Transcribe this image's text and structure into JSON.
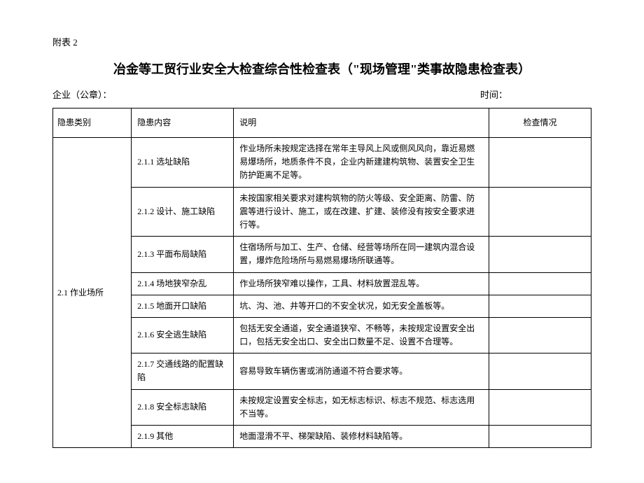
{
  "appendix_label": "附表 2",
  "title": "冶金等工贸行业安全大检查综合性检查表（\"现场管理\"类事故隐患检查表）",
  "meta": {
    "company_label": "企业（公章）：",
    "time_label": "时间："
  },
  "table": {
    "headers": {
      "category": "隐患类别",
      "content": "隐患内容",
      "desc": "说明",
      "status": "检查情况"
    },
    "category": "2.1 作业场所",
    "rows": [
      {
        "content": "2.1.1 选址缺陷",
        "desc": "作业场所未按规定选择在常年主导风上风或侧风风向，靠近易燃易爆场所，地质条件不良，企业内新建建构筑物、装置安全卫生防护距离不足等。",
        "status": ""
      },
      {
        "content": "2.1.2 设计、施工缺陷",
        "desc": "未按国家相关要求对建构筑物的防火等级、安全距离、防雷、防震等进行设计、施工，或在改建、扩建、装修没有按安全要求进行等。",
        "status": ""
      },
      {
        "content": "2.1.3 平面布局缺陷",
        "desc": "住宿场所与加工、生产、仓储、经营等场所在同一建筑内混合设置，爆炸危险场所与易燃易爆场所联通等。",
        "status": ""
      },
      {
        "content": "2.1.4 场地狭窄杂乱",
        "desc": "作业场所狭窄难以操作，工具、材料放置混乱等。",
        "status": ""
      },
      {
        "content": "2.1.5 地面开口缺陷",
        "desc": "坑、沟、池、井等开口的不安全状况，如无安全盖板等。",
        "status": ""
      },
      {
        "content": "2.1.6 安全逃生缺陷",
        "desc": "包括无安全通道，安全通道狭窄、不畅等，未按规定设置安全出口，包括无安全出口、安全出口数量不足、设置不合理等。",
        "status": ""
      },
      {
        "content": "2.1.7 交通线路的配置缺陷",
        "desc": "容易导致车辆伤害或消防通道不符合要求等。",
        "status": ""
      },
      {
        "content": "2.1.8 安全标志缺陷",
        "desc": "未按规定设置安全标志，如无标志标识、标志不规范、标志选用不当等。",
        "status": ""
      },
      {
        "content": "2.1.9 其他",
        "desc": "地面湿滑不平、梯架缺陷、装修材料缺陷等。",
        "status": ""
      }
    ]
  },
  "styling": {
    "background_color": "#ffffff",
    "text_color": "#000000",
    "border_color": "#000000",
    "title_fontsize": 18,
    "body_fontsize": 12,
    "appendix_fontsize": 13,
    "font_family": "SimSun"
  }
}
